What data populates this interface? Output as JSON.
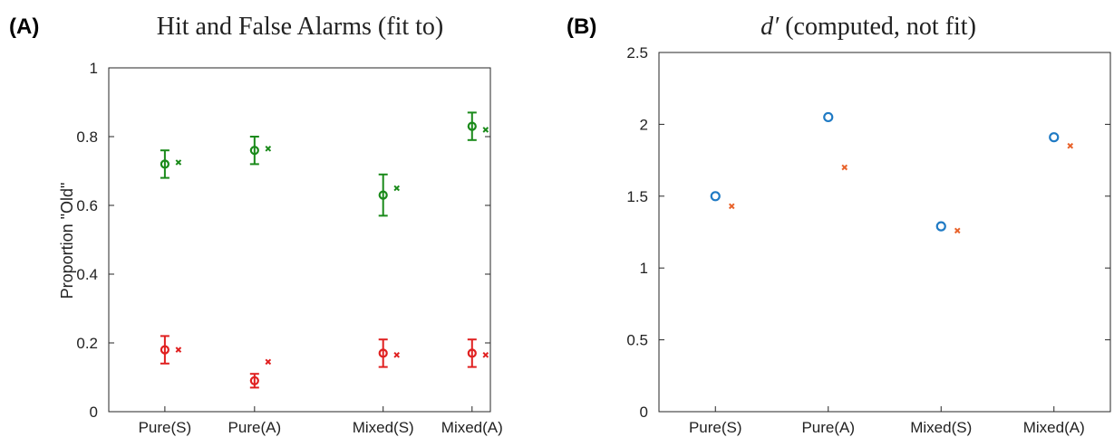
{
  "chart_data": [
    {
      "panel_label": "(A)",
      "type": "scatter",
      "title": "Hit and False Alarms (fit to)",
      "xlabel": "",
      "ylabel": "Proportion \"Old\"",
      "categories": [
        "Pure(S)",
        "Pure(A)",
        "Mixed(S)",
        "Mixed(A)"
      ],
      "ylim": [
        0,
        1
      ],
      "yticks": [
        "0",
        "0.2",
        "0.4",
        "0.6",
        "0.8",
        "1"
      ],
      "grid": false,
      "series": [
        {
          "color": "#1a8a1a",
          "marker": "circle",
          "values": [
            0.72,
            0.76,
            0.63,
            0.83
          ],
          "error_low": [
            0.68,
            0.72,
            0.57,
            0.79
          ],
          "error_high": [
            0.76,
            0.8,
            0.69,
            0.87
          ]
        },
        {
          "color": "#1a8a1a",
          "marker": "x",
          "values": [
            0.725,
            0.765,
            0.65,
            0.82
          ]
        },
        {
          "color": "#e02020",
          "marker": "circle",
          "values": [
            0.18,
            0.09,
            0.17,
            0.17
          ],
          "error_low": [
            0.14,
            0.07,
            0.13,
            0.13
          ],
          "error_high": [
            0.22,
            0.11,
            0.21,
            0.21
          ]
        },
        {
          "color": "#e02020",
          "marker": "x",
          "values": [
            0.18,
            0.145,
            0.165,
            0.165
          ]
        }
      ]
    },
    {
      "panel_label": "(B)",
      "type": "scatter",
      "title": "d′ (computed, not fit)",
      "xlabel": "",
      "ylabel": "",
      "categories": [
        "Pure(S)",
        "Pure(A)",
        "Mixed(S)",
        "Mixed(A)"
      ],
      "ylim": [
        0,
        2.5
      ],
      "yticks": [
        "0",
        "0.5",
        "1",
        "1.5",
        "2",
        "2.5"
      ],
      "grid": false,
      "series": [
        {
          "color": "#1f7ac4",
          "marker": "circle",
          "values": [
            1.5,
            2.05,
            1.29,
            1.91
          ]
        },
        {
          "color": "#e8622a",
          "marker": "x",
          "values": [
            1.43,
            1.7,
            1.26,
            1.85
          ]
        }
      ]
    }
  ]
}
